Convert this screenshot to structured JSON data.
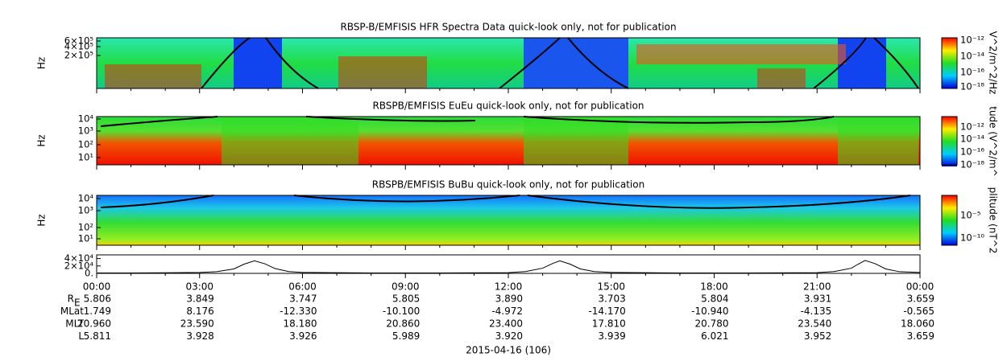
{
  "panels": [
    {
      "title": "RBSP-B/EMFISIS  HFR Spectra Data quick-look only, not for publication",
      "ylabel": "Hz",
      "yticks": [
        "6×10⁵",
        "4×10⁵",
        "2×10⁵"
      ],
      "colorbar_label": "V^2/m^2/Hz",
      "colorbar_ticks": [
        "10⁻¹²",
        "10⁻¹⁴",
        "10⁻¹⁶",
        "10⁻¹⁸"
      ]
    },
    {
      "title": "RBSPB/EMFISIS  EuEu quick-look only, not for publication",
      "ylabel": "Hz",
      "yticks": [
        "10⁴",
        "10³",
        "10²",
        "10¹"
      ],
      "colorbar_label": "tude (V^2/m^",
      "colorbar_ticks": [
        "10⁻¹²",
        "10⁻¹⁴",
        "10⁻¹⁶",
        "10⁻¹⁸"
      ]
    },
    {
      "title": "RBSPB/EMFISIS  BuBu quick-look only, not for publication",
      "ylabel": "Hz",
      "yticks": [
        "10⁴",
        "10³",
        "10²",
        "10¹"
      ],
      "colorbar_label": "plitude (nT^2",
      "colorbar_ticks": [
        "10⁻⁵",
        "10⁻¹⁰"
      ]
    }
  ],
  "line_panel": {
    "xlim": [
      0,
      24
    ],
    "ylim": [
      0,
      50000
    ],
    "yticks": [
      {
        "value": 40000,
        "label": "4×10⁴"
      },
      {
        "value": 20000,
        "label": "2×10⁴"
      },
      {
        "value": 0,
        "label": "0."
      }
    ],
    "x": [
      0,
      1,
      2,
      3,
      3.5,
      4,
      4.3,
      4.6,
      4.9,
      5.2,
      5.6,
      6,
      8,
      10,
      12,
      12.5,
      13,
      13.3,
      13.5,
      13.8,
      14.1,
      14.5,
      15,
      17,
      19,
      21,
      21.5,
      22,
      22.2,
      22.4,
      22.7,
      23,
      23.4,
      24
    ],
    "values": [
      1000,
      1200,
      1500,
      2500,
      4500,
      12000,
      25000,
      34000,
      26000,
      13000,
      5000,
      2500,
      1000,
      1000,
      2000,
      5000,
      14000,
      27000,
      34000,
      25000,
      12000,
      5000,
      2500,
      1200,
      1000,
      2000,
      5000,
      14000,
      25000,
      35000,
      26000,
      12000,
      4500,
      2500
    ]
  },
  "time_axis": {
    "labels": [
      "00:00",
      "03:00",
      "06:00",
      "09:00",
      "12:00",
      "15:00",
      "18:00",
      "21:00",
      "00:00"
    ]
  },
  "ephemeris": {
    "rows": [
      {
        "label": "R",
        "sub": "E",
        "values": [
          "5.806",
          "3.849",
          "3.747",
          "5.805",
          "3.890",
          "3.703",
          "5.804",
          "3.931",
          "3.659"
        ]
      },
      {
        "label": "MLat",
        "values": [
          "1.749",
          "8.176",
          "-12.330",
          "-10.100",
          "-4.972",
          "-14.170",
          "-10.940",
          "-4.135",
          "-0.565"
        ]
      },
      {
        "label": "MLT",
        "values": [
          "20.960",
          "23.590",
          "18.180",
          "20.860",
          "23.400",
          "17.810",
          "20.780",
          "23.540",
          "18.060"
        ]
      },
      {
        "label": "L",
        "values": [
          "5.811",
          "3.928",
          "3.926",
          "5.989",
          "3.920",
          "3.939",
          "6.021",
          "3.952",
          "3.659"
        ]
      }
    ]
  },
  "date": "2015-04-16 (106)"
}
